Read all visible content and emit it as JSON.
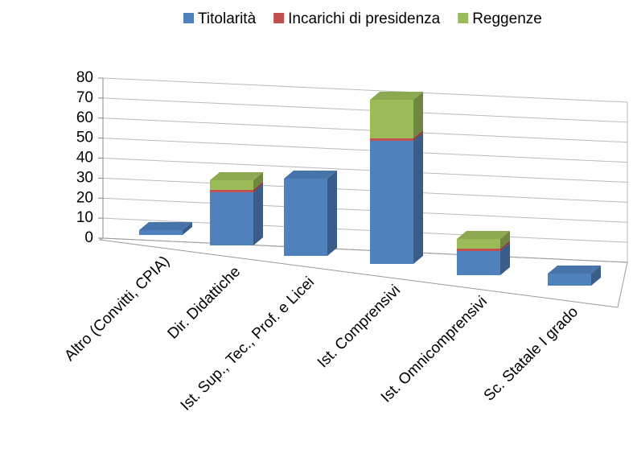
{
  "chart_data": {
    "type": "bar3d_stacked",
    "categories": [
      "Altro (Convitti, CPIA)",
      "Dir. Didattiche",
      "Ist. Sup., Tec., Prof. e Licei",
      "Ist. Comprensivi",
      "Ist. Omnicomprensivi",
      "Sc. Statale I grado"
    ],
    "series": [
      {
        "name": "Titolarità",
        "color": "#4f81bd",
        "values": [
          2,
          22,
          32,
          51,
          10,
          5
        ]
      },
      {
        "name": "Incarichi di presidenza",
        "color": "#c0504d",
        "values": [
          0,
          1,
          0,
          1,
          1,
          0
        ]
      },
      {
        "name": "Reggenze",
        "color": "#9bbb59",
        "values": [
          0,
          4,
          0,
          16,
          4,
          0
        ]
      }
    ],
    "ylim": [
      0,
      80
    ],
    "yticks": [
      0,
      10,
      20,
      30,
      40,
      50,
      60,
      70,
      80
    ],
    "grid": true,
    "legend": "top"
  }
}
